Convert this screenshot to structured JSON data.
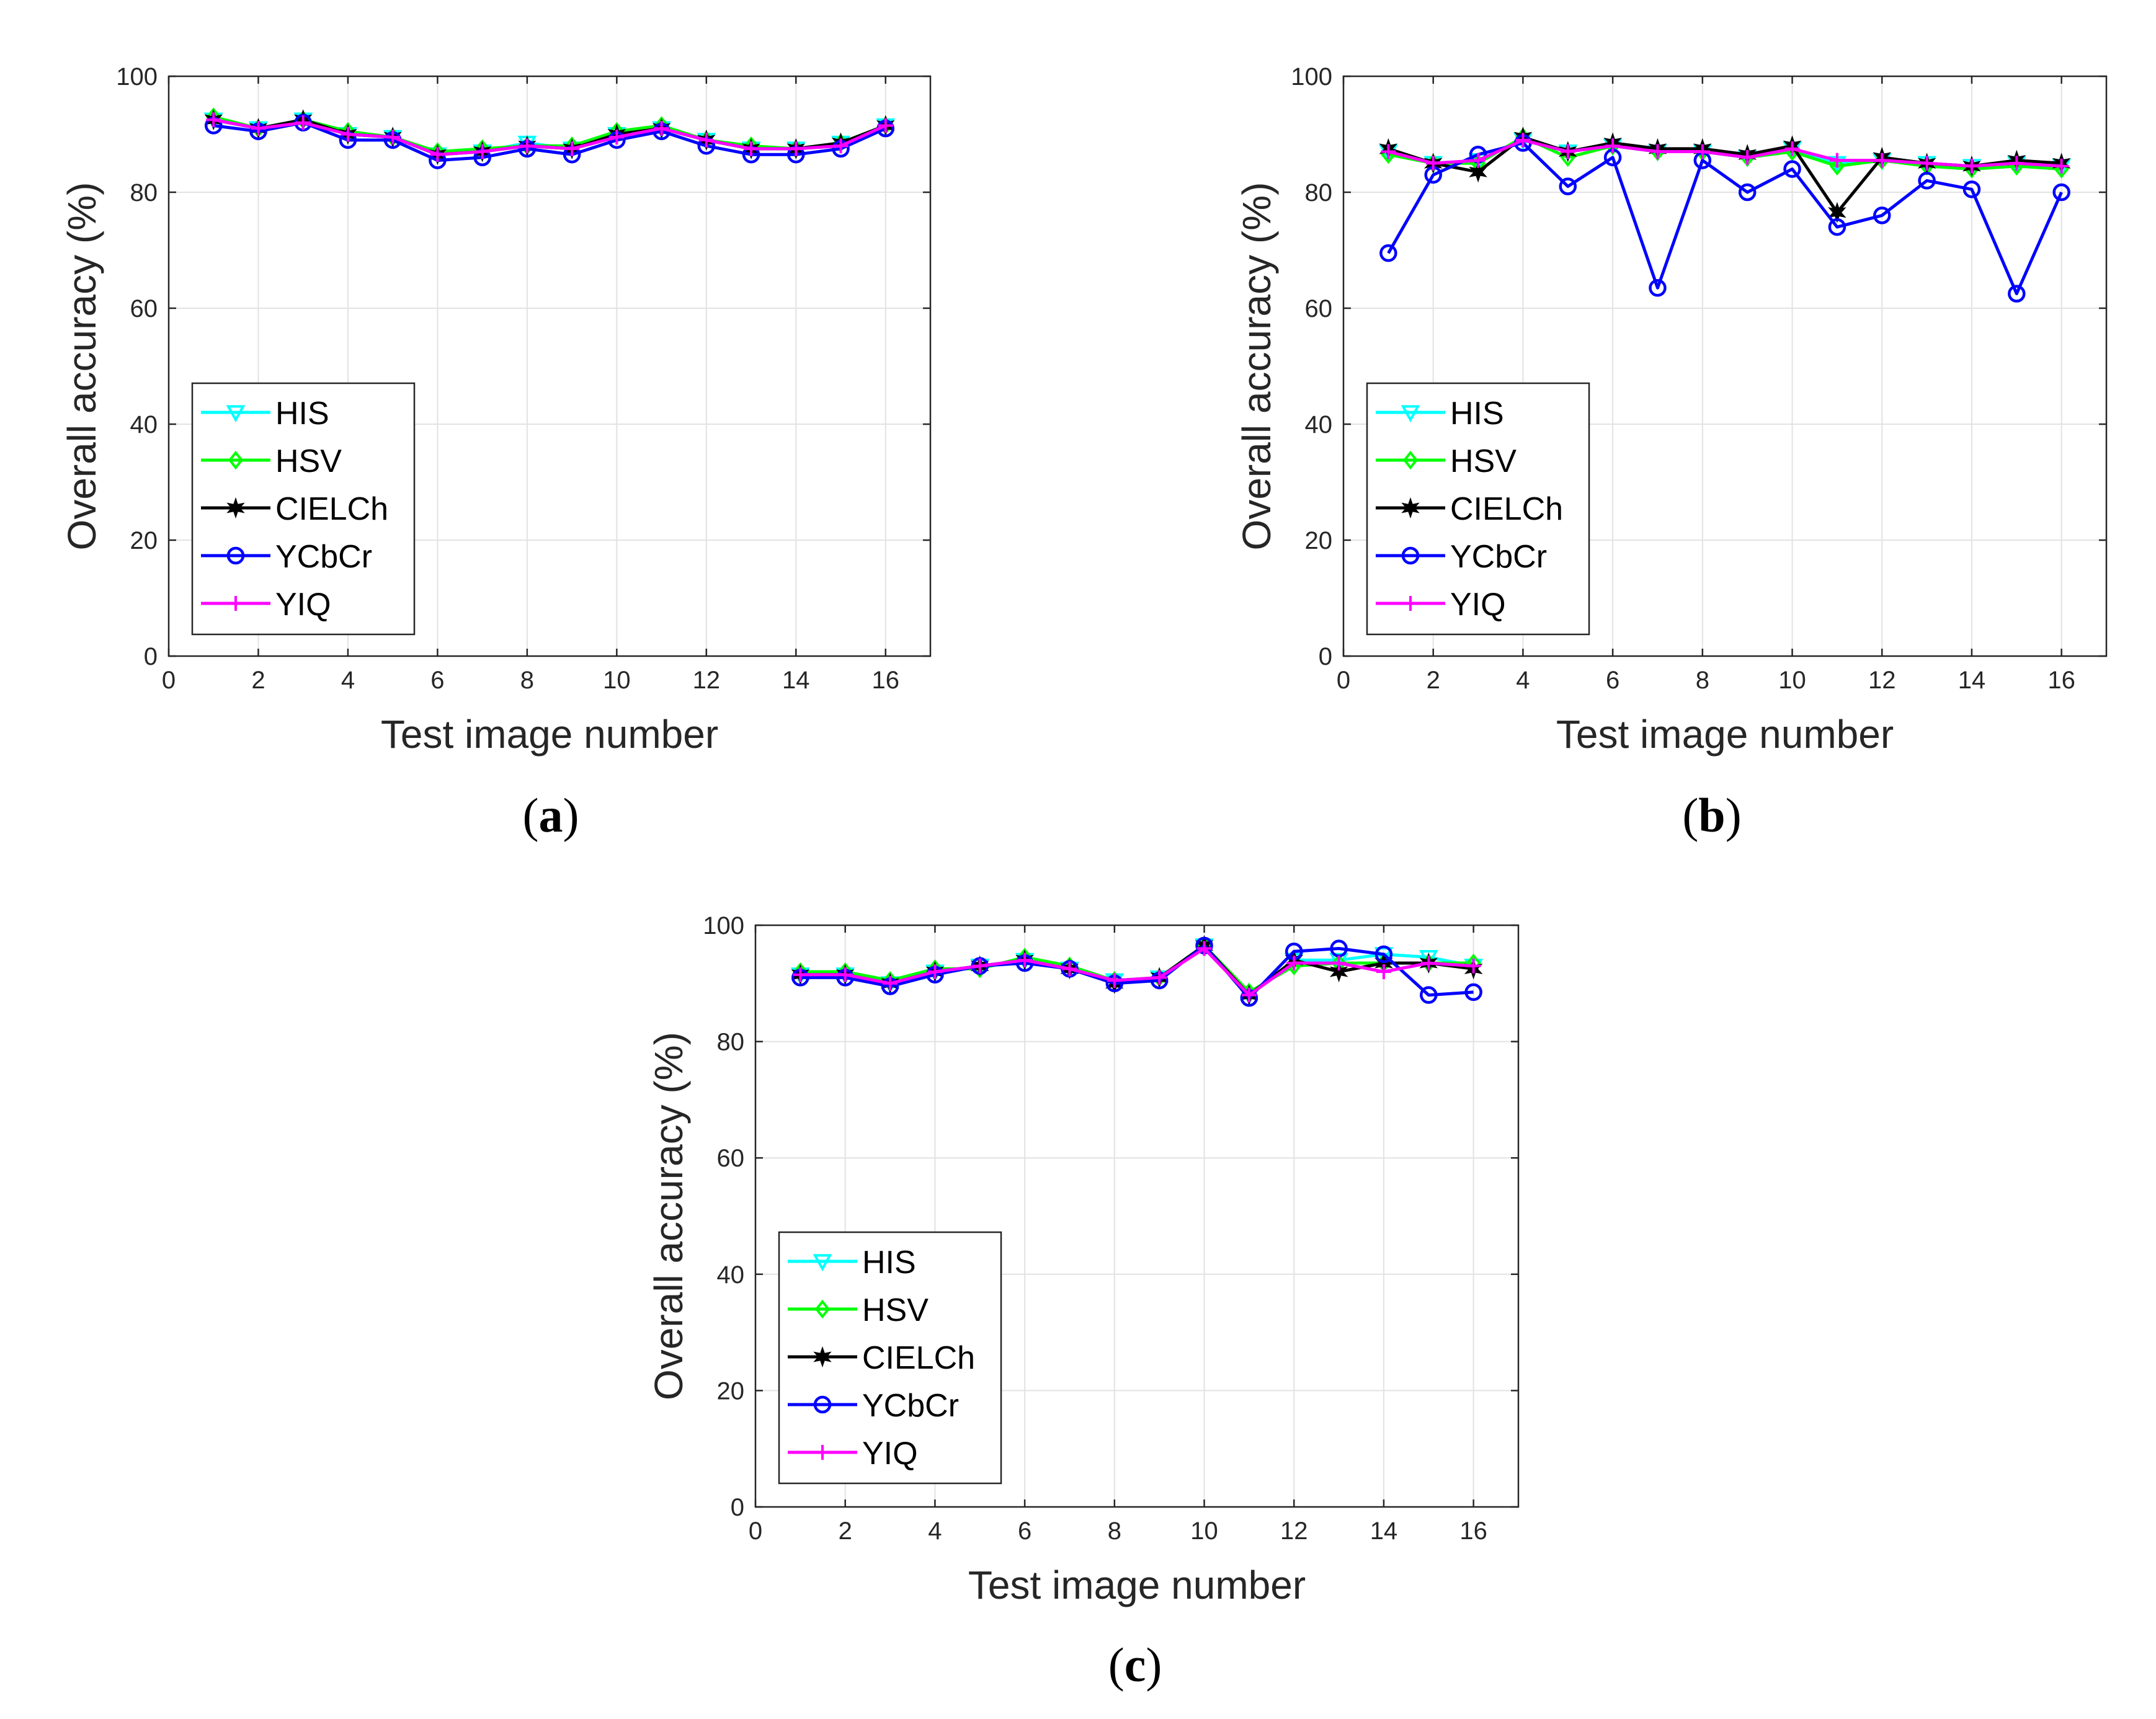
{
  "figure": {
    "panel_labels": [
      "a",
      "b",
      "c"
    ]
  },
  "chart_data": [
    {
      "type": "line",
      "panel": "a",
      "xlabel": "Test image number",
      "ylabel": "Overall accuracy (%)",
      "xlim": [
        0,
        17
      ],
      "ylim": [
        0,
        100
      ],
      "xticks": [
        0,
        2,
        4,
        6,
        8,
        10,
        12,
        14,
        16
      ],
      "yticks": [
        0,
        20,
        40,
        60,
        80,
        100
      ],
      "grid": true,
      "legend_position": "lower-left",
      "x": [
        1,
        2,
        3,
        4,
        5,
        6,
        7,
        8,
        9,
        10,
        11,
        12,
        13,
        14,
        15,
        16
      ],
      "series": [
        {
          "name": "HIS",
          "color": "#00ffff",
          "marker": "triangle-down",
          "values": [
            92.5,
            91,
            92.5,
            90,
            89.5,
            86.5,
            87,
            88.5,
            87.5,
            90,
            91,
            89,
            87.5,
            87.5,
            88.5,
            91.5
          ]
        },
        {
          "name": "HSV",
          "color": "#00ff00",
          "marker": "diamond",
          "values": [
            93,
            91,
            92.5,
            90.5,
            89.5,
            87,
            87.5,
            88,
            88,
            90.5,
            91.5,
            89,
            88,
            87.5,
            88.5,
            91.5
          ]
        },
        {
          "name": "CIELCh",
          "color": "#000000",
          "marker": "hexagram",
          "values": [
            92.5,
            91,
            92.5,
            90,
            89.5,
            86.5,
            87,
            88,
            87.5,
            90,
            91,
            89,
            87.5,
            87.5,
            88.5,
            91.5
          ]
        },
        {
          "name": "YCbCr",
          "color": "#0000ff",
          "marker": "circle",
          "values": [
            91.5,
            90.5,
            92,
            89,
            89,
            85.5,
            86,
            87.5,
            86.5,
            89,
            90.5,
            88,
            86.5,
            86.5,
            87.5,
            91
          ]
        },
        {
          "name": "YIQ",
          "color": "#ff00ff",
          "marker": "plus",
          "values": [
            92.5,
            91,
            92,
            90,
            89.5,
            86.5,
            87,
            88,
            87.5,
            89.5,
            91,
            89,
            87.5,
            87.5,
            88,
            91.5
          ]
        }
      ]
    },
    {
      "type": "line",
      "panel": "b",
      "xlabel": "Test image number",
      "ylabel": "Overall accuracy (%)",
      "xlim": [
        0,
        17
      ],
      "ylim": [
        0,
        100
      ],
      "xticks": [
        0,
        2,
        4,
        6,
        8,
        10,
        12,
        14,
        16
      ],
      "yticks": [
        0,
        20,
        40,
        60,
        80,
        100
      ],
      "grid": true,
      "legend_position": "lower-left",
      "x": [
        1,
        2,
        3,
        4,
        5,
        6,
        7,
        8,
        9,
        10,
        11,
        12,
        13,
        14,
        15,
        16
      ],
      "series": [
        {
          "name": "HIS",
          "color": "#00ffff",
          "marker": "triangle-down",
          "values": [
            87,
            85,
            85.5,
            89,
            87,
            88,
            87,
            87,
            86,
            87.5,
            85,
            85.5,
            85,
            84.5,
            85,
            84.5
          ]
        },
        {
          "name": "HSV",
          "color": "#00ff00",
          "marker": "diamond",
          "values": [
            86.5,
            85,
            85,
            89.5,
            86,
            88,
            87,
            87,
            86,
            87,
            84.5,
            85.5,
            84.5,
            84,
            84.5,
            84
          ]
        },
        {
          "name": "CIELCh",
          "color": "#000000",
          "marker": "hexagram",
          "values": [
            87.5,
            85,
            83.5,
            89.5,
            87,
            88.5,
            87.5,
            87.5,
            86.5,
            88,
            76.5,
            86,
            85,
            84.5,
            85.5,
            85
          ]
        },
        {
          "name": "YCbCr",
          "color": "#0000ff",
          "marker": "circle",
          "values": [
            69.5,
            83,
            86.5,
            88.5,
            81,
            86,
            63.5,
            85.5,
            80,
            84,
            74,
            76,
            82,
            80.5,
            62.5,
            80
          ]
        },
        {
          "name": "YIQ",
          "color": "#ff00ff",
          "marker": "plus",
          "values": [
            87,
            85,
            85.5,
            89,
            87,
            88,
            87,
            87,
            86,
            87.5,
            85.5,
            85.5,
            85,
            84.5,
            85,
            84.5
          ]
        }
      ]
    },
    {
      "type": "line",
      "panel": "c",
      "xlabel": "Test image number",
      "ylabel": "Overall accuracy (%)",
      "xlim": [
        0,
        17
      ],
      "ylim": [
        0,
        100
      ],
      "xticks": [
        0,
        2,
        4,
        6,
        8,
        10,
        12,
        14,
        16
      ],
      "yticks": [
        0,
        20,
        40,
        60,
        80,
        100
      ],
      "grid": true,
      "legend_position": "lower-left",
      "x": [
        1,
        2,
        3,
        4,
        5,
        6,
        7,
        8,
        9,
        10,
        11,
        12,
        13,
        14,
        15,
        16
      ],
      "series": [
        {
          "name": "HIS",
          "color": "#00ffff",
          "marker": "triangle-down",
          "values": [
            91.5,
            91.5,
            90,
            92,
            93,
            94,
            92.5,
            90.5,
            91,
            96.5,
            88,
            94,
            94,
            95,
            94.5,
            93
          ]
        },
        {
          "name": "HSV",
          "color": "#00ff00",
          "marker": "diamond",
          "values": [
            92,
            92,
            90.5,
            92.5,
            92.5,
            94.5,
            93,
            90.5,
            91,
            96.5,
            88.5,
            93,
            93.5,
            93.5,
            93.5,
            93.5
          ]
        },
        {
          "name": "CIELCh",
          "color": "#000000",
          "marker": "hexagram",
          "values": [
            91.5,
            91.5,
            90,
            92,
            93,
            94,
            92.5,
            90,
            91,
            96.5,
            88,
            94,
            92,
            93.5,
            93.5,
            92.5
          ]
        },
        {
          "name": "YCbCr",
          "color": "#0000ff",
          "marker": "circle",
          "values": [
            91,
            91,
            89.5,
            91.5,
            93,
            93.5,
            92.5,
            90,
            90.5,
            96.5,
            87.5,
            95.5,
            96,
            95,
            88,
            88.5
          ]
        },
        {
          "name": "YIQ",
          "color": "#ff00ff",
          "marker": "plus",
          "values": [
            91.5,
            91.5,
            90,
            92,
            93,
            94,
            92.5,
            90.5,
            91,
            96,
            88,
            93.5,
            93.5,
            92,
            93.5,
            93
          ]
        }
      ]
    }
  ]
}
